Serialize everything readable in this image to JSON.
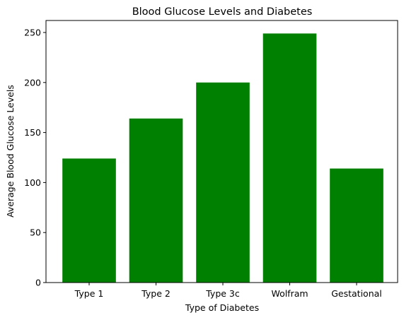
{
  "chart_data": {
    "type": "bar",
    "title": "Blood Glucose Levels and Diabetes",
    "xlabel": "Type of Diabetes",
    "ylabel": "Average Blood Glucose Levels",
    "categories": [
      "Type 1",
      "Type 2",
      "Type 3c",
      "Wolfram",
      "Gestational"
    ],
    "values": [
      124,
      164,
      200,
      249,
      114
    ],
    "ylim": [
      0,
      262
    ],
    "yticks": [
      0,
      50,
      100,
      150,
      200,
      250
    ],
    "bar_color": "#008000",
    "grid": false
  }
}
